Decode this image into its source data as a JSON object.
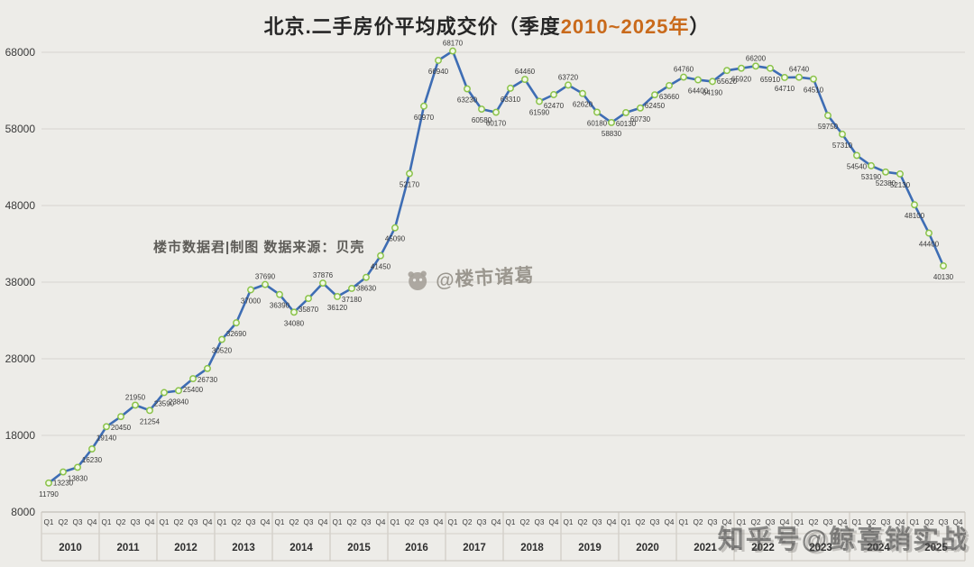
{
  "title": {
    "prefix": "北京.二手房价平均成交价（季度",
    "highlight": "2010~2025年",
    "suffix": "）"
  },
  "watermarks": {
    "source": "楼市数据君|制图  数据来源：贝壳",
    "center": "@楼市诸葛",
    "bottom_right": "知乎号@鲸喜销实战"
  },
  "colors": {
    "background": "#edece8",
    "line": "#3e6db4",
    "marker_fill": "#f2f9e6",
    "marker_stroke": "#8bc34a",
    "grid": "#d8d5cf",
    "axis_line": "#b7b3ab",
    "axis_text": "#3a3a3a",
    "label": "#3a3a3a",
    "title_highlight": "#c96a1b"
  },
  "chart_data": {
    "type": "line",
    "title": "北京.二手房价平均成交价（季度2010~2025年）",
    "xlabel": "",
    "ylabel": "",
    "ylim": [
      8000,
      68000
    ],
    "yticks": [
      8000,
      18000,
      28000,
      38000,
      48000,
      58000,
      68000
    ],
    "grid": "horizontal",
    "legend": "none",
    "years": [
      "2010",
      "2011",
      "2012",
      "2013",
      "2014",
      "2015",
      "2016",
      "2017",
      "2018",
      "2019",
      "2020",
      "2021",
      "2022",
      "2023",
      "2024",
      "2025"
    ],
    "quarter_labels": [
      "Q1",
      "Q2",
      "Q3",
      "Q4"
    ],
    "values": [
      11790,
      13230,
      13830,
      16230,
      19140,
      20450,
      21950,
      21254,
      23590,
      23840,
      25400,
      26730,
      30520,
      32690,
      37000,
      37690,
      36390,
      34080,
      35870,
      37876,
      36120,
      37180,
      38630,
      41450,
      45090,
      52170,
      60970,
      66940,
      68170,
      63230,
      60580,
      60170,
      63310,
      64460,
      61590,
      62470,
      63720,
      62620,
      60180,
      58830,
      60130,
      60730,
      62450,
      63660,
      64760,
      64400,
      64190,
      65620,
      65920,
      66200,
      65910,
      64710,
      64740,
      64510,
      59750,
      57310,
      54540,
      53190,
      52380,
      52130,
      48100,
      44400,
      40130
    ]
  }
}
